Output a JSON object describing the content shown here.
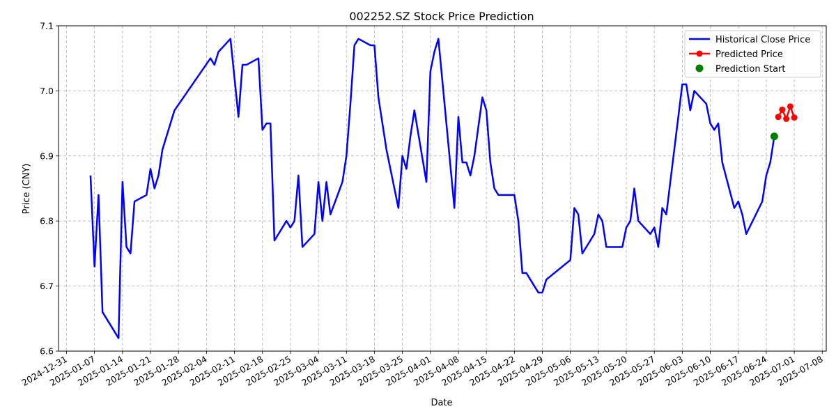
{
  "chart_data": {
    "type": "line",
    "title": "002252.SZ Stock Price Prediction",
    "xlabel": "Date",
    "ylabel": "Price (CNY)",
    "xlim": [
      "2024-12-29",
      "2025-07-09"
    ],
    "ylim": [
      6.6,
      7.1
    ],
    "grid": true,
    "legend_position": "top-right",
    "x_ticks": [
      "2024-12-31",
      "2025-01-07",
      "2025-01-14",
      "2025-01-21",
      "2025-01-28",
      "2025-02-04",
      "2025-02-11",
      "2025-02-18",
      "2025-02-25",
      "2025-03-04",
      "2025-03-11",
      "2025-03-18",
      "2025-03-25",
      "2025-04-01",
      "2025-04-08",
      "2025-04-15",
      "2025-04-22",
      "2025-04-29",
      "2025-05-06",
      "2025-05-13",
      "2025-05-20",
      "2025-05-27",
      "2025-06-03",
      "2025-06-10",
      "2025-06-17",
      "2025-06-24",
      "2025-07-01",
      "2025-07-08"
    ],
    "y_ticks": [
      "6.6",
      "6.7",
      "6.8",
      "6.9",
      "7.0",
      "7.1"
    ],
    "series": [
      {
        "name": "Historical Close Price",
        "color": "#0000ff",
        "marker": "none",
        "points": [
          [
            "2025-01-06",
            6.87
          ],
          [
            "2025-01-07",
            6.73
          ],
          [
            "2025-01-08",
            6.84
          ],
          [
            "2025-01-09",
            6.66
          ],
          [
            "2025-01-13",
            6.62
          ],
          [
            "2025-01-14",
            6.86
          ],
          [
            "2025-01-15",
            6.76
          ],
          [
            "2025-01-16",
            6.75
          ],
          [
            "2025-01-17",
            6.83
          ],
          [
            "2025-01-20",
            6.84
          ],
          [
            "2025-01-21",
            6.88
          ],
          [
            "2025-01-22",
            6.85
          ],
          [
            "2025-01-23",
            6.87
          ],
          [
            "2025-01-24",
            6.91
          ],
          [
            "2025-01-27",
            6.97
          ],
          [
            "2025-02-05",
            7.05
          ],
          [
            "2025-02-06",
            7.04
          ],
          [
            "2025-02-07",
            7.06
          ],
          [
            "2025-02-10",
            7.08
          ],
          [
            "2025-02-11",
            7.02
          ],
          [
            "2025-02-12",
            6.96
          ],
          [
            "2025-02-13",
            7.04
          ],
          [
            "2025-02-14",
            7.04
          ],
          [
            "2025-02-17",
            7.05
          ],
          [
            "2025-02-18",
            6.94
          ],
          [
            "2025-02-19",
            6.95
          ],
          [
            "2025-02-20",
            6.95
          ],
          [
            "2025-02-21",
            6.77
          ],
          [
            "2025-02-24",
            6.8
          ],
          [
            "2025-02-25",
            6.79
          ],
          [
            "2025-02-26",
            6.8
          ],
          [
            "2025-02-27",
            6.87
          ],
          [
            "2025-02-28",
            6.76
          ],
          [
            "2025-03-03",
            6.78
          ],
          [
            "2025-03-04",
            6.86
          ],
          [
            "2025-03-05",
            6.8
          ],
          [
            "2025-03-06",
            6.86
          ],
          [
            "2025-03-07",
            6.81
          ],
          [
            "2025-03-10",
            6.86
          ],
          [
            "2025-03-11",
            6.9
          ],
          [
            "2025-03-12",
            6.98
          ],
          [
            "2025-03-13",
            7.07
          ],
          [
            "2025-03-14",
            7.08
          ],
          [
            "2025-03-17",
            7.07
          ],
          [
            "2025-03-18",
            7.07
          ],
          [
            "2025-03-19",
            6.99
          ],
          [
            "2025-03-20",
            6.95
          ],
          [
            "2025-03-21",
            6.91
          ],
          [
            "2025-03-24",
            6.82
          ],
          [
            "2025-03-25",
            6.9
          ],
          [
            "2025-03-26",
            6.88
          ],
          [
            "2025-03-27",
            6.93
          ],
          [
            "2025-03-28",
            6.97
          ],
          [
            "2025-03-31",
            6.86
          ],
          [
            "2025-04-01",
            7.03
          ],
          [
            "2025-04-02",
            7.06
          ],
          [
            "2025-04-03",
            7.08
          ],
          [
            "2025-04-07",
            6.82
          ],
          [
            "2025-04-08",
            6.96
          ],
          [
            "2025-04-09",
            6.89
          ],
          [
            "2025-04-10",
            6.89
          ],
          [
            "2025-04-11",
            6.87
          ],
          [
            "2025-04-12",
            6.9
          ],
          [
            "2025-04-14",
            6.99
          ],
          [
            "2025-04-15",
            6.97
          ],
          [
            "2025-04-16",
            6.89
          ],
          [
            "2025-04-17",
            6.85
          ],
          [
            "2025-04-18",
            6.84
          ],
          [
            "2025-04-21",
            6.84
          ],
          [
            "2025-04-22",
            6.84
          ],
          [
            "2025-04-23",
            6.8
          ],
          [
            "2025-04-24",
            6.72
          ],
          [
            "2025-04-25",
            6.72
          ],
          [
            "2025-04-28",
            6.69
          ],
          [
            "2025-04-29",
            6.69
          ],
          [
            "2025-04-30",
            6.71
          ],
          [
            "2025-05-06",
            6.74
          ],
          [
            "2025-05-07",
            6.82
          ],
          [
            "2025-05-08",
            6.81
          ],
          [
            "2025-05-09",
            6.75
          ],
          [
            "2025-05-12",
            6.78
          ],
          [
            "2025-05-13",
            6.81
          ],
          [
            "2025-05-14",
            6.8
          ],
          [
            "2025-05-15",
            6.76
          ],
          [
            "2025-05-19",
            6.76
          ],
          [
            "2025-05-20",
            6.79
          ],
          [
            "2025-05-21",
            6.8
          ],
          [
            "2025-05-22",
            6.85
          ],
          [
            "2025-05-23",
            6.8
          ],
          [
            "2025-05-26",
            6.78
          ],
          [
            "2025-05-27",
            6.79
          ],
          [
            "2025-05-28",
            6.76
          ],
          [
            "2025-05-29",
            6.82
          ],
          [
            "2025-05-30",
            6.81
          ],
          [
            "2025-06-03",
            7.01
          ],
          [
            "2025-06-04",
            7.01
          ],
          [
            "2025-06-05",
            6.97
          ],
          [
            "2025-06-06",
            7.0
          ],
          [
            "2025-06-09",
            6.98
          ],
          [
            "2025-06-10",
            6.95
          ],
          [
            "2025-06-11",
            6.94
          ],
          [
            "2025-06-12",
            6.95
          ],
          [
            "2025-06-13",
            6.89
          ],
          [
            "2025-06-16",
            6.82
          ],
          [
            "2025-06-17",
            6.83
          ],
          [
            "2025-06-18",
            6.81
          ],
          [
            "2025-06-19",
            6.78
          ],
          [
            "2025-06-23",
            6.83
          ],
          [
            "2025-06-24",
            6.87
          ],
          [
            "2025-06-25",
            6.89
          ],
          [
            "2025-06-26",
            6.93
          ]
        ]
      },
      {
        "name": "Predicted Price",
        "color": "#ff0000",
        "marker": "circle",
        "points": [
          [
            "2025-06-27",
            6.96
          ],
          [
            "2025-06-28",
            6.971
          ],
          [
            "2025-06-29",
            6.957
          ],
          [
            "2025-06-30",
            6.976
          ],
          [
            "2025-07-01",
            6.959
          ]
        ]
      },
      {
        "name": "Prediction Start",
        "color": "#008000",
        "marker": "circle-large",
        "points": [
          [
            "2025-06-26",
            6.93
          ]
        ]
      }
    ]
  }
}
